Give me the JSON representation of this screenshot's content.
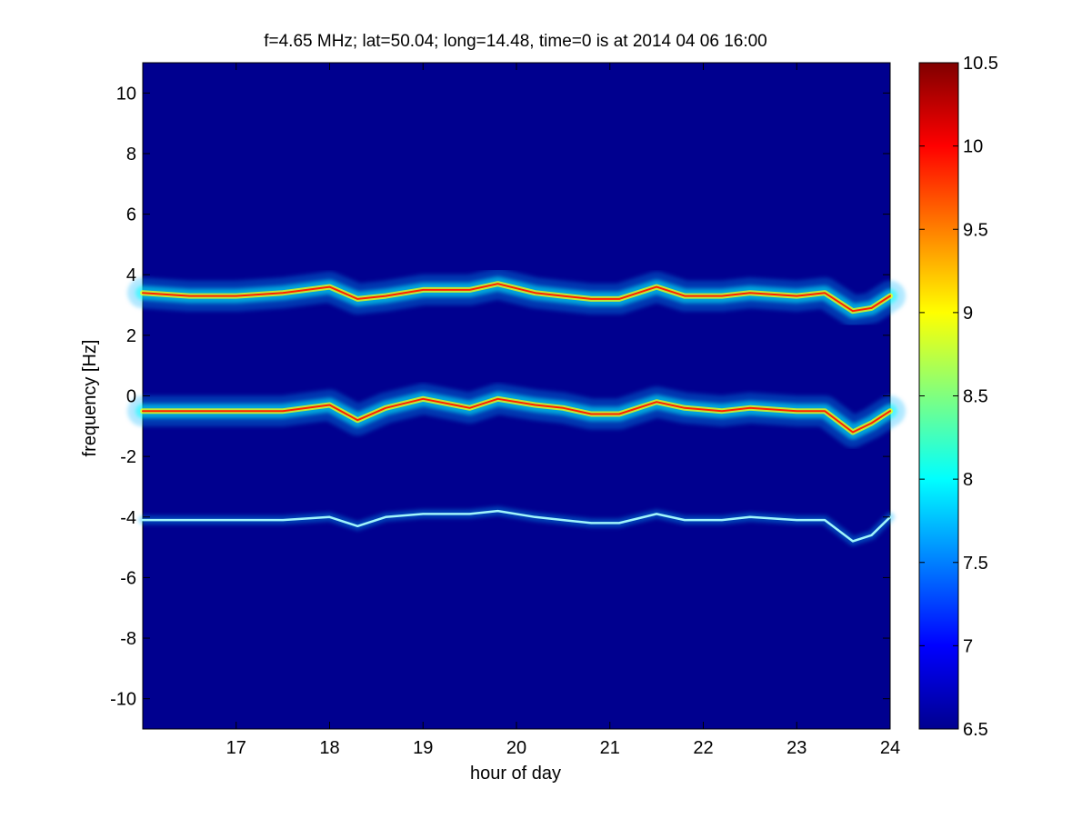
{
  "chart_data": {
    "type": "heatmap",
    "title": "f=4.65 MHz;  lat=50.04; long=14.48, time=0 is at 2014 04 06 16:00",
    "xlabel": "hour of day",
    "ylabel": "frequency [Hz]",
    "xlim": [
      16,
      24
    ],
    "ylim": [
      -11,
      11
    ],
    "x_ticks": [
      "17",
      "18",
      "19",
      "20",
      "21",
      "22",
      "23",
      "24"
    ],
    "y_ticks": [
      "10",
      "8",
      "6",
      "4",
      "2",
      "0",
      "-2",
      "-4",
      "-6",
      "-8",
      "-10"
    ],
    "colorbar": {
      "range": [
        6.5,
        10.5
      ],
      "ticks": [
        "10.5",
        "10",
        "9.5",
        "9",
        "8.5",
        "8",
        "7.5",
        "7",
        "6.5"
      ],
      "colormap": "jet"
    },
    "series": [
      {
        "x": [
          16.0,
          16.5,
          17.0,
          17.5,
          18.0,
          18.3,
          18.6,
          19.0,
          19.5,
          19.8,
          20.2,
          20.5,
          20.8,
          21.1,
          21.5,
          21.8,
          22.2,
          22.5,
          23.0,
          23.3,
          23.6,
          23.8,
          24.0
        ],
        "y": [
          3.4,
          3.3,
          3.3,
          3.4,
          3.6,
          3.2,
          3.3,
          3.5,
          3.5,
          3.7,
          3.4,
          3.3,
          3.2,
          3.2,
          3.6,
          3.3,
          3.3,
          3.4,
          3.3,
          3.4,
          2.8,
          2.9,
          3.3
        ]
      },
      {
        "x": [
          16.0,
          16.5,
          17.0,
          17.5,
          18.0,
          18.3,
          18.6,
          19.0,
          19.5,
          19.8,
          20.2,
          20.5,
          20.8,
          21.1,
          21.5,
          21.8,
          22.2,
          22.5,
          23.0,
          23.3,
          23.6,
          23.8,
          24.0
        ],
        "y": [
          -0.5,
          -0.5,
          -0.5,
          -0.5,
          -0.3,
          -0.8,
          -0.4,
          -0.1,
          -0.4,
          -0.1,
          -0.3,
          -0.4,
          -0.6,
          -0.6,
          -0.2,
          -0.4,
          -0.5,
          -0.4,
          -0.5,
          -0.5,
          -1.2,
          -0.9,
          -0.5
        ]
      },
      {
        "x": [
          16.0,
          16.5,
          17.0,
          17.5,
          18.0,
          18.3,
          18.6,
          19.0,
          19.5,
          19.8,
          20.2,
          20.5,
          20.8,
          21.1,
          21.5,
          21.8,
          22.2,
          22.5,
          23.0,
          23.3,
          23.6,
          23.8,
          24.0
        ],
        "y": [
          -4.1,
          -4.1,
          -4.1,
          -4.1,
          -4.0,
          -4.3,
          -4.0,
          -3.9,
          -3.9,
          -3.8,
          -4.0,
          -4.1,
          -4.2,
          -4.2,
          -3.9,
          -4.1,
          -4.1,
          -4.0,
          -4.1,
          -4.1,
          -4.8,
          -4.6,
          -4.0
        ]
      }
    ]
  }
}
